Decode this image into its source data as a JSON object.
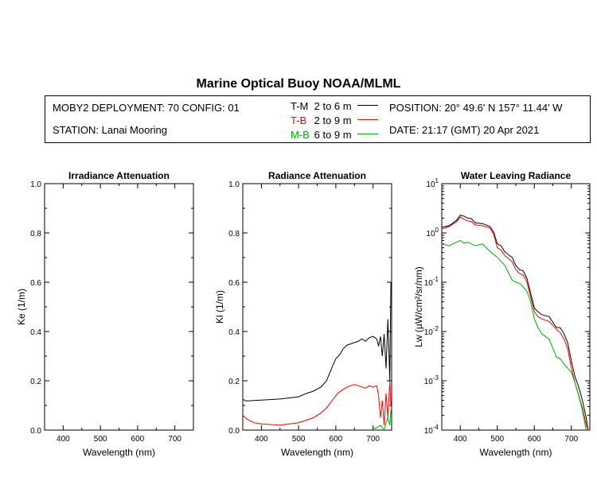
{
  "header": {
    "title": "Marine Optical Buoy NOAA/MLML",
    "deployment": "MOBY2 DEPLOYMENT: 70 CONFIG: 01",
    "station": "STATION: Lanai Mooring",
    "position": "POSITION: 20° 49.6' N   157° 11.44' W",
    "date": "DATE: 21:17 (GMT) 20 Apr 2021",
    "legend": [
      {
        "code": "T-M",
        "range": "2 to 6  m",
        "color": "#000000"
      },
      {
        "code": "T-B",
        "range": "2 to 9  m",
        "color": "#ff0000"
      },
      {
        "code": "M-B",
        "range": "6 to 9  m",
        "color": "#00aa00"
      }
    ]
  },
  "chart_data": [
    {
      "type": "line",
      "title": "Irradiance Attenuation",
      "xlabel": "Wavelength (nm)",
      "ylabel": "Ke  (1/m)",
      "xlim": [
        350,
        750
      ],
      "ylim": [
        0,
        1
      ],
      "xticks": [
        400,
        500,
        600,
        700
      ],
      "xtick_labels": [
        "400",
        "500",
        "600",
        "700"
      ],
      "yticks": [
        0,
        0.2,
        0.4,
        0.6,
        0.8,
        1.0
      ],
      "ytick_labels": [
        "0.0",
        "0.2",
        "0.4",
        "0.6",
        "0.8",
        "1.0"
      ],
      "series": []
    },
    {
      "type": "line",
      "title": "Radiance Attenuation",
      "xlabel": "Wavelength (nm)",
      "ylabel": "Kl  (1/m)",
      "xlim": [
        350,
        750
      ],
      "ylim": [
        0,
        1
      ],
      "xticks": [
        400,
        500,
        600,
        700
      ],
      "xtick_labels": [
        "400",
        "500",
        "600",
        "700"
      ],
      "yticks": [
        0,
        0.2,
        0.4,
        0.6,
        0.8,
        1.0
      ],
      "ytick_labels": [
        "0.0",
        "0.2",
        "0.4",
        "0.6",
        "0.8",
        "1.0"
      ],
      "series": [
        {
          "name": "T-M",
          "color": "#000000",
          "x": [
            350,
            360,
            380,
            400,
            450,
            500,
            520,
            540,
            560,
            575,
            590,
            600,
            610,
            620,
            630,
            640,
            650,
            660,
            670,
            680,
            690,
            700,
            710,
            715,
            720,
            725,
            730,
            735,
            740,
            745,
            748
          ],
          "y": [
            0.125,
            0.118,
            0.12,
            0.122,
            0.126,
            0.135,
            0.148,
            0.158,
            0.175,
            0.2,
            0.255,
            0.29,
            0.305,
            0.33,
            0.345,
            0.35,
            0.355,
            0.36,
            0.37,
            0.36,
            0.375,
            0.38,
            0.37,
            0.34,
            0.38,
            0.3,
            0.39,
            0.25,
            0.45,
            0.2,
            0.6
          ]
        },
        {
          "name": "T-B",
          "color": "#ff0000",
          "x": [
            350,
            360,
            380,
            400,
            450,
            500,
            520,
            540,
            560,
            575,
            590,
            600,
            610,
            620,
            630,
            640,
            650,
            660,
            670,
            680,
            690,
            700,
            710,
            715,
            720,
            725,
            730,
            735,
            740,
            745,
            748
          ],
          "y": [
            0.06,
            0.045,
            0.03,
            0.025,
            0.02,
            0.03,
            0.04,
            0.05,
            0.07,
            0.09,
            0.12,
            0.14,
            0.155,
            0.165,
            0.175,
            0.18,
            0.185,
            0.18,
            0.175,
            0.17,
            0.18,
            0.175,
            0.18,
            0.14,
            0.05,
            0.12,
            0.02,
            0.15,
            0.05,
            0.2,
            0.1
          ]
        },
        {
          "name": "M-B",
          "color": "#00aa00",
          "x": [
            700,
            710,
            720,
            730,
            735,
            740,
            745,
            748
          ],
          "y": [
            0.005,
            0.01,
            0.02,
            0.0,
            0.03,
            0.05,
            0.02,
            0.08
          ]
        }
      ]
    },
    {
      "type": "line",
      "title": "Water Leaving Radiance",
      "xlabel": "Wavelength (nm)",
      "ylabel": "Lw  (µW/cm²/sr/nm)",
      "yscale": "log",
      "xlim": [
        350,
        750
      ],
      "ylim": [
        0.0001,
        10
      ],
      "xticks": [
        400,
        500,
        600,
        700
      ],
      "xtick_labels": [
        "400",
        "500",
        "600",
        "700"
      ],
      "yticks": [
        0.0001,
        0.001,
        0.01,
        0.1,
        1,
        10
      ],
      "ytick_base": [
        "10",
        "10",
        "10",
        "10",
        "10",
        "10"
      ],
      "ytick_exp": [
        "-4",
        "-3",
        "-2",
        "-1",
        "0",
        "1"
      ],
      "series": [
        {
          "name": "T-M",
          "color": "#000000",
          "x": [
            350,
            370,
            390,
            400,
            410,
            420,
            430,
            440,
            460,
            480,
            490,
            500,
            510,
            520,
            530,
            540,
            550,
            560,
            570,
            580,
            590,
            600,
            610,
            620,
            640,
            660,
            670,
            680,
            690,
            700,
            710,
            720,
            730,
            740,
            745
          ],
          "y": [
            1.3,
            1.4,
            1.8,
            2.3,
            2.2,
            2.0,
            1.95,
            1.6,
            1.55,
            1.35,
            1.05,
            0.6,
            0.55,
            0.42,
            0.36,
            0.32,
            0.22,
            0.18,
            0.17,
            0.12,
            0.06,
            0.03,
            0.025,
            0.022,
            0.02,
            0.012,
            0.012,
            0.009,
            0.006,
            0.0025,
            0.0012,
            0.00075,
            0.0004,
            0.00018,
            0.0001
          ]
        },
        {
          "name": "T-B",
          "color": "#ff0000",
          "x": [
            350,
            370,
            390,
            400,
            410,
            420,
            430,
            440,
            460,
            480,
            490,
            500,
            510,
            520,
            530,
            540,
            550,
            560,
            570,
            580,
            590,
            600,
            610,
            620,
            640,
            660,
            670,
            680,
            690,
            700,
            710,
            720,
            730,
            740,
            745
          ],
          "y": [
            1.2,
            1.35,
            1.7,
            2.1,
            1.9,
            1.75,
            1.7,
            1.45,
            1.4,
            1.25,
            0.95,
            0.5,
            0.45,
            0.35,
            0.3,
            0.26,
            0.18,
            0.15,
            0.14,
            0.1,
            0.05,
            0.025,
            0.02,
            0.018,
            0.016,
            0.011,
            0.0095,
            0.007,
            0.0045,
            0.0018,
            0.0009,
            0.0005,
            0.00028,
            0.00013,
            0.0001
          ]
        },
        {
          "name": "M-B",
          "color": "#00aa00",
          "x": [
            350,
            370,
            390,
            400,
            410,
            420,
            430,
            440,
            460,
            480,
            500,
            520,
            540,
            550,
            560,
            570,
            580,
            590,
            600,
            610,
            620,
            640,
            660,
            670,
            680,
            690,
            700,
            710,
            720,
            730,
            740
          ],
          "y": [
            0.6,
            0.55,
            0.65,
            0.7,
            0.62,
            0.65,
            0.6,
            0.55,
            0.6,
            0.42,
            0.32,
            0.22,
            0.11,
            0.1,
            0.095,
            0.08,
            0.065,
            0.04,
            0.018,
            0.012,
            0.009,
            0.007,
            0.003,
            0.0028,
            0.0022,
            0.0018,
            0.0015,
            0.0009,
            0.0005,
            0.00025,
            0.0001
          ]
        }
      ]
    }
  ]
}
